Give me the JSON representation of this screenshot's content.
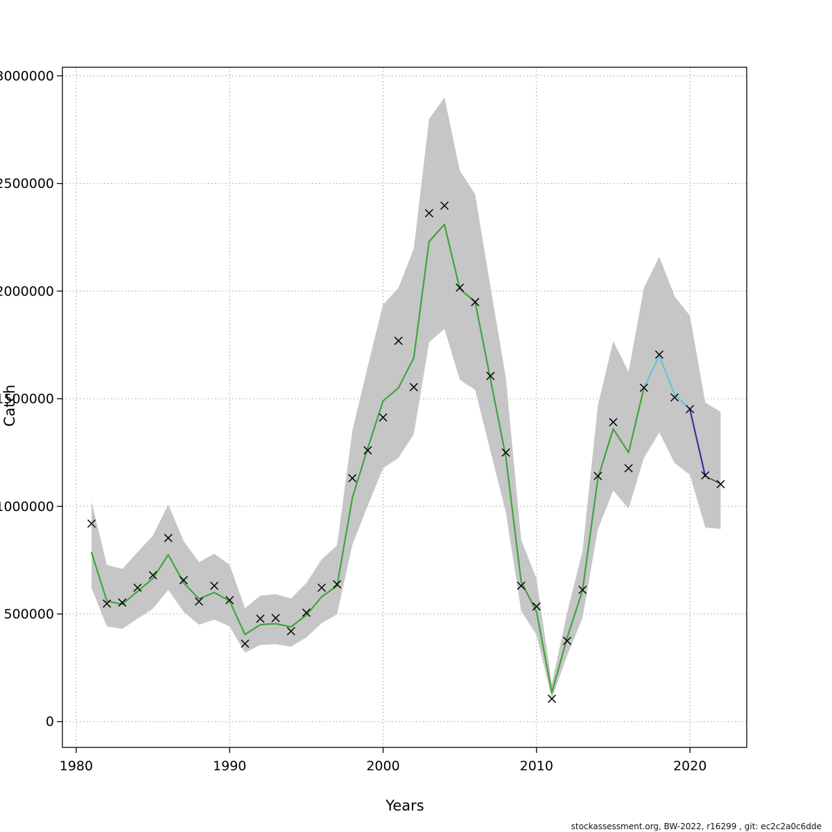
{
  "page": {
    "xlabel": "Years",
    "ylabel": "Catch",
    "footer": "stockassessment.org, BW-2022, r16299 , git: ec2c2a0c6dde"
  },
  "chart_data": {
    "type": "line",
    "title": "",
    "xlabel": "Years",
    "ylabel": "Catch",
    "xlim": [
      1979.1,
      2023.7
    ],
    "ylim": [
      -120000,
      3040000
    ],
    "x_ticks": [
      1980,
      1990,
      2000,
      2010,
      2020
    ],
    "y_ticks": [
      0,
      500000,
      1000000,
      1500000,
      2000000,
      2500000,
      3000000
    ],
    "grid": "dotted",
    "grid_color": "#9a9a9a",
    "frame_color": "#000000",
    "years": [
      1981,
      1982,
      1983,
      1984,
      1985,
      1986,
      1987,
      1988,
      1989,
      1990,
      1991,
      1992,
      1993,
      1994,
      1995,
      1996,
      1997,
      1998,
      1999,
      2000,
      2001,
      2002,
      2003,
      2004,
      2005,
      2006,
      2007,
      2008,
      2009,
      2010,
      2011,
      2012,
      2013,
      2014,
      2015,
      2016,
      2017,
      2018,
      2019,
      2020,
      2021,
      2022
    ],
    "observed": {
      "name": "observed-catch",
      "marker": "x",
      "color": "#000000",
      "values": [
        920000,
        548000,
        553000,
        622000,
        680000,
        853000,
        657000,
        558000,
        631000,
        564000,
        362000,
        478000,
        481000,
        420000,
        506000,
        622000,
        638000,
        1131000,
        1260000,
        1413000,
        1769000,
        1554000,
        2362000,
        2397000,
        2016000,
        1949000,
        1606000,
        1250000,
        631000,
        535000,
        106000,
        375000,
        612000,
        1141000,
        1391000,
        1177000,
        1551000,
        1705000,
        1506000,
        1452000,
        1144000,
        1103000
      ]
    },
    "fit": {
      "name": "estimated-catch",
      "values": [
        785000,
        560000,
        545000,
        605000,
        665000,
        775000,
        645000,
        570000,
        600000,
        560000,
        405000,
        450000,
        455000,
        440000,
        495000,
        580000,
        630000,
        1040000,
        1270000,
        1490000,
        1550000,
        1690000,
        2230000,
        2310000,
        2010000,
        1950000,
        1590000,
        1230000,
        650000,
        510000,
        135000,
        390000,
        610000,
        1130000,
        1360000,
        1250000,
        1550000,
        1700000,
        1520000,
        1450000,
        1140000,
        1105000
      ],
      "segments": [
        {
          "from": 1981,
          "to": 2017,
          "color": "#3fa33f",
          "width": 2.2
        },
        {
          "from": 2017,
          "to": 2020,
          "color": "#63c3dc",
          "width": 2.2
        },
        {
          "from": 2020,
          "to": 2021,
          "color": "#33339e",
          "width": 2.2
        },
        {
          "from": 2021,
          "to": 2022,
          "color": "#2b2b2b",
          "width": 1.2
        }
      ]
    },
    "band": {
      "name": "confidence-band",
      "color": "#c6c6c6",
      "low": [
        620000,
        442000,
        431000,
        478000,
        525000,
        612000,
        510000,
        450000,
        474000,
        442000,
        320000,
        356000,
        359000,
        348000,
        391000,
        458000,
        498000,
        822000,
        1003000,
        1177000,
        1225000,
        1335000,
        1762000,
        1825000,
        1588000,
        1541000,
        1256000,
        972000,
        514000,
        403000,
        107000,
        308000,
        482000,
        893000,
        1074000,
        988000,
        1225000,
        1343000,
        1201000,
        1146000,
        901000,
        895000
      ],
      "high": [
        1021000,
        728000,
        709000,
        787000,
        865000,
        1008000,
        839000,
        741000,
        780000,
        728000,
        527000,
        585000,
        592000,
        572000,
        644000,
        754000,
        819000,
        1352000,
        1651000,
        1937000,
        2015000,
        2197000,
        2800000,
        2900000,
        2560000,
        2450000,
        2020000,
        1599000,
        845000,
        663000,
        176000,
        507000,
        793000,
        1469000,
        1768000,
        1625000,
        2015000,
        2160000,
        1976000,
        1885000,
        1482000,
        1440000
      ]
    }
  }
}
